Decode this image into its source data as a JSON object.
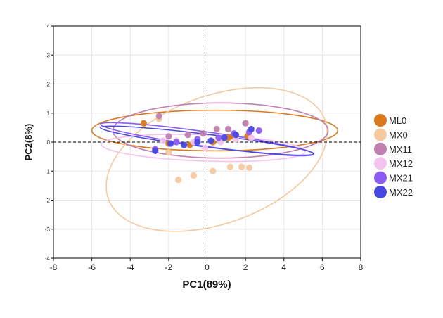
{
  "chart_data": {
    "type": "scatter",
    "title": "",
    "xlabel": "PC1(89%)",
    "ylabel": "PC2(8%)",
    "xlim": [
      -8,
      8
    ],
    "ylim": [
      -4,
      4
    ],
    "x_ticks": [
      "-8",
      "-6",
      "-4",
      "-2",
      "0",
      "2",
      "4",
      "6",
      "8"
    ],
    "y_ticks": [
      "-4",
      "-3",
      "-2",
      "-1",
      "0",
      "1",
      "2",
      "3",
      "4"
    ],
    "grid": true,
    "zero_lines": "dashed",
    "legend_position": "right",
    "series": [
      {
        "name": "ML0",
        "color": "#D97A1F",
        "points": [
          [
            -3.3,
            0.65
          ],
          [
            -2.0,
            -0.05
          ],
          [
            -0.9,
            -0.1
          ],
          [
            0.3,
            0.0
          ],
          [
            1.1,
            0.15
          ],
          [
            1.3,
            0.2
          ],
          [
            2.1,
            0.2
          ]
        ],
        "ellipse": {
          "center": [
            0.4,
            0.4
          ],
          "rx": 6.4,
          "ry": 0.7,
          "angle": 0
        }
      },
      {
        "name": "MX0",
        "color": "#F5C9A0",
        "points": [
          [
            -2.5,
            0.8
          ],
          [
            -2.0,
            -0.35
          ],
          [
            -1.5,
            -1.3
          ],
          [
            -0.7,
            -1.15
          ],
          [
            0.3,
            -1.0
          ],
          [
            1.2,
            -0.85
          ],
          [
            1.8,
            -0.85
          ],
          [
            2.2,
            -0.88
          ]
        ],
        "ellipse": {
          "center": [
            0.5,
            -0.6
          ],
          "rx": 6.0,
          "ry": 2.2,
          "angle": -20
        }
      },
      {
        "name": "MX11",
        "color": "#C080B0",
        "points": [
          [
            -2.5,
            0.9
          ],
          [
            -2.0,
            0.2
          ],
          [
            -1.0,
            0.25
          ],
          [
            -0.2,
            0.3
          ],
          [
            0.5,
            0.45
          ],
          [
            1.1,
            0.45
          ],
          [
            2.0,
            0.65
          ]
        ],
        "ellipse": {
          "center": [
            0.7,
            0.4
          ],
          "rx": 5.6,
          "ry": 0.95,
          "angle": 0
        }
      },
      {
        "name": "MX12",
        "color": "#F2C4EE",
        "points": [
          [
            -2.3,
            0.05
          ],
          [
            -1.6,
            0.05
          ],
          [
            -0.7,
            0.0
          ],
          [
            -0.1,
            -0.2
          ],
          [
            0.7,
            0.0
          ],
          [
            1.5,
            0.1
          ],
          [
            2.3,
            0.15
          ]
        ],
        "ellipse": {
          "center": [
            -0.2,
            -0.2
          ],
          "rx": 5.3,
          "ry": 0.45,
          "angle": 2
        }
      },
      {
        "name": "MX21",
        "color": "#8C5CF2",
        "points": [
          [
            -2.7,
            -0.25
          ],
          [
            -1.6,
            0.0
          ],
          [
            -0.5,
            0.1
          ],
          [
            0.6,
            0.15
          ],
          [
            1.4,
            0.3
          ],
          [
            2.2,
            0.35
          ],
          [
            2.7,
            0.4
          ]
        ],
        "ellipse": {
          "center": [
            0.0,
            0.1
          ],
          "rx": 5.6,
          "ry": 0.25,
          "angle": 8
        }
      },
      {
        "name": "MX22",
        "color": "#4848E0",
        "points": [
          [
            -2.7,
            -0.3
          ],
          [
            -1.9,
            -0.05
          ],
          [
            -1.2,
            -0.1
          ],
          [
            -0.5,
            0.0
          ],
          [
            0.2,
            0.05
          ],
          [
            0.9,
            0.15
          ],
          [
            1.5,
            0.25
          ],
          [
            2.3,
            0.45
          ]
        ],
        "ellipse": {
          "center": [
            0.0,
            0.05
          ],
          "rx": 5.6,
          "ry": 0.22,
          "angle": 7
        }
      }
    ]
  }
}
